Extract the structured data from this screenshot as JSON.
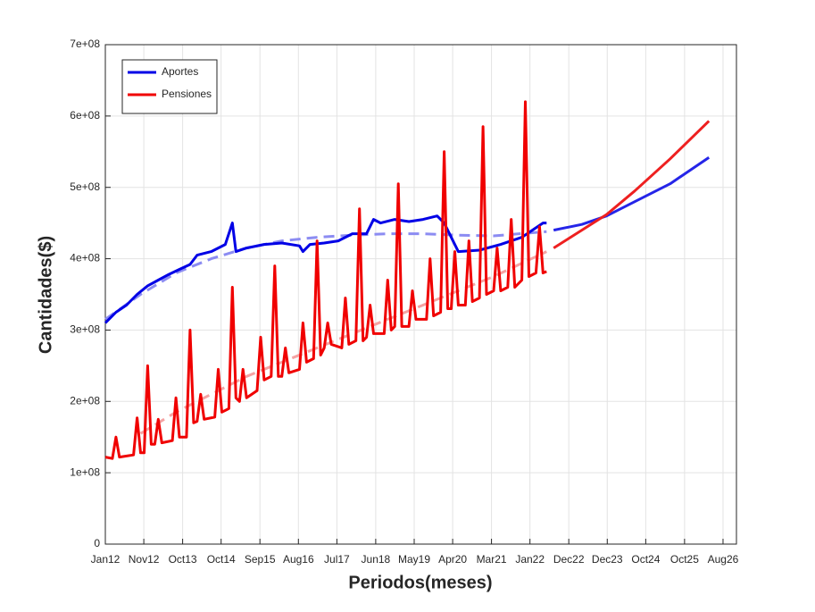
{
  "chart_data": {
    "type": "line",
    "xlabel": "Periodos(meses)",
    "ylabel": "Cantidades($)",
    "xlim": [
      0,
      178.8
    ],
    "ylim": [
      0,
      700000000.0
    ],
    "xticks": [
      {
        "value": 0,
        "label": "Jan12"
      },
      {
        "value": 10.9,
        "label": "Nov12"
      },
      {
        "value": 21.9,
        "label": "Oct13"
      },
      {
        "value": 32.8,
        "label": "Oct14"
      },
      {
        "value": 43.8,
        "label": "Sep15"
      },
      {
        "value": 54.7,
        "label": "Aug16"
      },
      {
        "value": 65.6,
        "label": "Jul17"
      },
      {
        "value": 76.6,
        "label": "Jun18"
      },
      {
        "value": 87.5,
        "label": "May19"
      },
      {
        "value": 98.4,
        "label": "Apr20"
      },
      {
        "value": 109.4,
        "label": "Mar21"
      },
      {
        "value": 120.3,
        "label": "Jan22"
      },
      {
        "value": 131.3,
        "label": "Dec22"
      },
      {
        "value": 142.2,
        "label": "Dec23"
      },
      {
        "value": 153.1,
        "label": "Oct24"
      },
      {
        "value": 164.1,
        "label": "Oct25"
      },
      {
        "value": 175,
        "label": "Aug26"
      }
    ],
    "yticks": [
      0,
      {
        "value": 100000000.0,
        "label": "1e+08"
      },
      {
        "value": 200000000.0,
        "label": "2e+08"
      },
      {
        "value": 300000000.0,
        "label": "3e+08"
      },
      {
        "value": 400000000.0,
        "label": "4e+08"
      },
      {
        "value": 500000000.0,
        "label": "5e+08"
      },
      {
        "value": 600000000.0,
        "label": "6e+08"
      },
      {
        "value": 700000000.0,
        "label": "7e+08"
      }
    ],
    "grid": true,
    "legend": "upper left",
    "series": [
      {
        "color": "#8c8cf2",
        "dash": true,
        "x": [
          0,
          10,
          20,
          30,
          40,
          50,
          60,
          70,
          80,
          90,
          100,
          110,
          125
        ],
        "values": [
          315000000.0,
          350000000.0,
          380000000.0,
          400000000.0,
          415000000.0,
          425000000.0,
          430000000.0,
          433000000.0,
          435000000.0,
          435000000.0,
          433000000.0,
          432000000.0,
          438000000.0
        ]
      },
      {
        "color": "#f5a3a3",
        "dash": true,
        "x": [
          10,
          20,
          30,
          40,
          50,
          60,
          70,
          80,
          90,
          100,
          110,
          125
        ],
        "values": [
          155000000.0,
          185000000.0,
          210000000.0,
          235000000.0,
          255000000.0,
          275000000.0,
          295000000.0,
          315000000.0,
          335000000.0,
          355000000.0,
          375000000.0,
          410000000.0
        ]
      },
      {
        "name": "Aportes",
        "color": "#0000e6",
        "x": [
          0,
          3,
          6,
          9,
          12,
          15,
          18,
          21,
          24,
          26,
          30,
          34,
          36,
          37,
          40,
          45,
          50,
          55,
          56,
          58,
          62,
          66,
          70,
          74,
          76,
          78,
          82,
          86,
          90,
          94,
          96,
          100,
          106,
          112,
          118,
          124,
          125
        ],
        "values": [
          310000000.0,
          325000000.0,
          335000000.0,
          350000000.0,
          362000000.0,
          370000000.0,
          378000000.0,
          385000000.0,
          392000000.0,
          405000000.0,
          410000000.0,
          420000000.0,
          450000000.0,
          410000000.0,
          415000000.0,
          420000000.0,
          422000000.0,
          418000000.0,
          410000000.0,
          420000000.0,
          422000000.0,
          425000000.0,
          435000000.0,
          435000000.0,
          455000000.0,
          450000000.0,
          455000000.0,
          452000000.0,
          455000000.0,
          460000000.0,
          450000000.0,
          410000000.0,
          412000000.0,
          420000000.0,
          430000000.0,
          450000000.0,
          450000000.0
        ]
      },
      {
        "name": "Pensiones",
        "color": "#f00000",
        "x": [
          0,
          2,
          3,
          4,
          8,
          9,
          10,
          11,
          12,
          13,
          14,
          15,
          16,
          19,
          20,
          21,
          23,
          24,
          25,
          26,
          27,
          28,
          31,
          32,
          33,
          35,
          36,
          37,
          38,
          39,
          40,
          43,
          44,
          45,
          47,
          48,
          49,
          50,
          51,
          52,
          55,
          56,
          57,
          59,
          60,
          61,
          62,
          63,
          64,
          67,
          68,
          69,
          71,
          72,
          73,
          74,
          75,
          76,
          79,
          80,
          81,
          82,
          83,
          84,
          86,
          87,
          88,
          91,
          92,
          93,
          95,
          96,
          97,
          98,
          99,
          100,
          102,
          103,
          104,
          106,
          107,
          108,
          110,
          111,
          112,
          114,
          115,
          116,
          118,
          119,
          120,
          122,
          123,
          124,
          125
        ],
        "values": [
          122000000.0,
          120000000.0,
          150000000.0,
          122000000.0,
          125000000.0,
          177000000.0,
          128000000.0,
          128000000.0,
          250000000.0,
          140000000.0,
          140000000.0,
          175000000.0,
          142000000.0,
          145000000.0,
          205000000.0,
          150000000.0,
          150000000.0,
          300000000.0,
          170000000.0,
          172000000.0,
          210000000.0,
          175000000.0,
          178000000.0,
          245000000.0,
          185000000.0,
          190000000.0,
          360000000.0,
          205000000.0,
          200000000.0,
          245000000.0,
          205000000.0,
          215000000.0,
          290000000.0,
          230000000.0,
          235000000.0,
          390000000.0,
          235000000.0,
          235000000.0,
          275000000.0,
          240000000.0,
          245000000.0,
          310000000.0,
          255000000.0,
          260000000.0,
          425000000.0,
          265000000.0,
          275000000.0,
          310000000.0,
          280000000.0,
          275000000.0,
          345000000.0,
          280000000.0,
          285000000.0,
          470000000.0,
          285000000.0,
          290000000.0,
          335000000.0,
          295000000.0,
          295000000.0,
          370000000.0,
          300000000.0,
          305000000.0,
          505000000.0,
          305000000.0,
          305000000.0,
          355000000.0,
          315000000.0,
          315000000.0,
          400000000.0,
          320000000.0,
          325000000.0,
          550000000.0,
          330000000.0,
          330000000.0,
          410000000.0,
          335000000.0,
          335000000.0,
          425000000.0,
          340000000.0,
          345000000.0,
          585000000.0,
          350000000.0,
          355000000.0,
          415000000.0,
          355000000.0,
          360000000.0,
          455000000.0,
          360000000.0,
          370000000.0,
          620000000.0,
          375000000.0,
          380000000.0,
          445000000.0,
          380000000.0,
          382000000.0
        ]
      },
      {
        "color": "#2525e8",
        "x": [
          127,
          135,
          142,
          150,
          160,
          171
        ],
        "values": [
          440000000.0,
          448000000.0,
          460000000.0,
          480000000.0,
          505000000.0,
          542000000.0
        ]
      },
      {
        "color": "#ee2020",
        "x": [
          127,
          135,
          142,
          150,
          160,
          171
        ],
        "values": [
          415000000.0,
          440000000.0,
          462000000.0,
          495000000.0,
          540000000.0,
          593000000.0
        ]
      }
    ]
  }
}
